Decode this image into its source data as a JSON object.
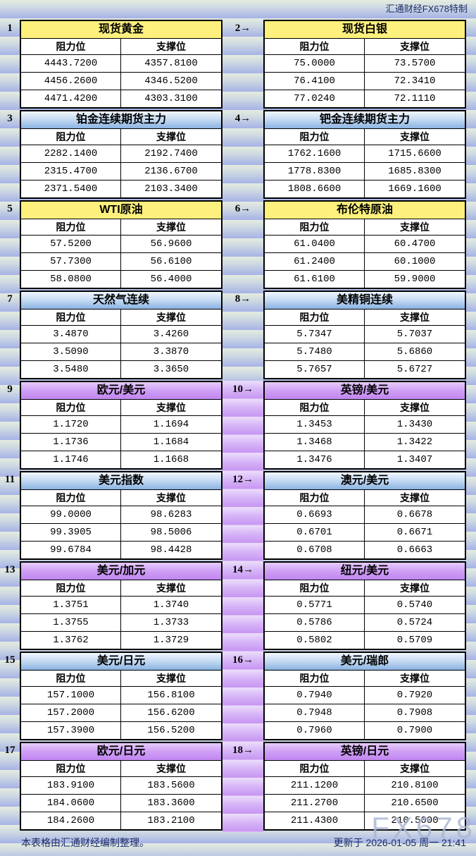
{
  "meta": {
    "brand_note": "汇通财经FX678特制",
    "footer_left": "本表格由汇通财经编制整理。",
    "footer_right": "更新于 2026-01-05 周一 21:41",
    "watermark": "FX678"
  },
  "labels": {
    "resistance": "阻力位",
    "support": "支撑位"
  },
  "colors": {
    "yellow_header": "#fdf07d",
    "blue_header": "#8ab2e2",
    "purple_header": "#c186f0",
    "page_band_top": "#e4ecdf",
    "page_band_bottom": "#a6b2e6",
    "text_navy": "#1c2c66"
  },
  "blocks": [
    {
      "badge": "1",
      "title": "现货黄金",
      "style": "yellow",
      "resistance": [
        "4443.7200",
        "4456.2600",
        "4471.4200"
      ],
      "support": [
        "4357.8100",
        "4346.5200",
        "4303.3100"
      ]
    },
    {
      "badge": "2→",
      "title": "现货白银",
      "style": "yellow",
      "resistance": [
        "75.0000",
        "76.4100",
        "77.0240"
      ],
      "support": [
        "73.5700",
        "72.3410",
        "72.1110"
      ]
    },
    {
      "badge": "3",
      "title": "铂金连续期货主力",
      "style": "blue",
      "resistance": [
        "2282.1400",
        "2315.4700",
        "2371.5400"
      ],
      "support": [
        "2192.7400",
        "2136.6700",
        "2103.3400"
      ]
    },
    {
      "badge": "4→",
      "title": "钯金连续期货主力",
      "style": "blue",
      "resistance": [
        "1762.1600",
        "1778.8300",
        "1808.6600"
      ],
      "support": [
        "1715.6600",
        "1685.8300",
        "1669.1600"
      ]
    },
    {
      "badge": "5",
      "title": "WTI原油",
      "style": "yellow",
      "resistance": [
        "57.5200",
        "57.7300",
        "58.0800"
      ],
      "support": [
        "56.9600",
        "56.6100",
        "56.4000"
      ]
    },
    {
      "badge": "6→",
      "title": "布伦特原油",
      "style": "yellow",
      "resistance": [
        "61.0400",
        "61.2400",
        "61.6100"
      ],
      "support": [
        "60.4700",
        "60.1000",
        "59.9000"
      ]
    },
    {
      "badge": "7",
      "title": "天然气连续",
      "style": "blue",
      "resistance": [
        "3.4870",
        "3.5090",
        "3.5480"
      ],
      "support": [
        "3.4260",
        "3.3870",
        "3.3650"
      ]
    },
    {
      "badge": "8→",
      "title": "美精铜连续",
      "style": "blue",
      "resistance": [
        "5.7347",
        "5.7480",
        "5.7657"
      ],
      "support": [
        "5.7037",
        "5.6860",
        "5.6727"
      ]
    },
    {
      "badge": "9",
      "title": "欧元/美元",
      "style": "purple",
      "resistance": [
        "1.1720",
        "1.1736",
        "1.1746"
      ],
      "support": [
        "1.1694",
        "1.1684",
        "1.1668"
      ]
    },
    {
      "badge": "10→",
      "title": "英镑/美元",
      "style": "purple",
      "resistance": [
        "1.3453",
        "1.3468",
        "1.3476"
      ],
      "support": [
        "1.3430",
        "1.3422",
        "1.3407"
      ]
    },
    {
      "badge": "11",
      "title": "美元指数",
      "style": "blue",
      "resistance": [
        "99.0000",
        "99.3905",
        "99.6784"
      ],
      "support": [
        "98.6283",
        "98.5006",
        "98.4428"
      ]
    },
    {
      "badge": "12→",
      "title": "澳元/美元",
      "style": "blue",
      "resistance": [
        "0.6693",
        "0.6701",
        "0.6708"
      ],
      "support": [
        "0.6678",
        "0.6671",
        "0.6663"
      ]
    },
    {
      "badge": "13",
      "title": "美元/加元",
      "style": "purple",
      "resistance": [
        "1.3751",
        "1.3755",
        "1.3762"
      ],
      "support": [
        "1.3740",
        "1.3733",
        "1.3729"
      ]
    },
    {
      "badge": "14→",
      "title": "纽元/美元",
      "style": "purple",
      "resistance": [
        "0.5771",
        "0.5786",
        "0.5802"
      ],
      "support": [
        "0.5740",
        "0.5724",
        "0.5709"
      ]
    },
    {
      "badge": "15",
      "title": "美元/日元",
      "style": "blue",
      "resistance": [
        "157.1000",
        "157.2000",
        "157.3900"
      ],
      "support": [
        "156.8100",
        "156.6200",
        "156.5200"
      ]
    },
    {
      "badge": "16→",
      "title": "美元/瑞郎",
      "style": "blue",
      "resistance": [
        "0.7940",
        "0.7948",
        "0.7960"
      ],
      "support": [
        "0.7920",
        "0.7908",
        "0.7900"
      ]
    },
    {
      "badge": "17",
      "title": "欧元/日元",
      "style": "purple",
      "resistance": [
        "183.9100",
        "184.0600",
        "184.2600"
      ],
      "support": [
        "183.5600",
        "183.3600",
        "183.2100"
      ]
    },
    {
      "badge": "18→",
      "title": "英镑/日元",
      "style": "purple",
      "resistance": [
        "211.1200",
        "211.2700",
        "211.4300"
      ],
      "support": [
        "210.8100",
        "210.6500",
        "210.5000"
      ]
    }
  ]
}
